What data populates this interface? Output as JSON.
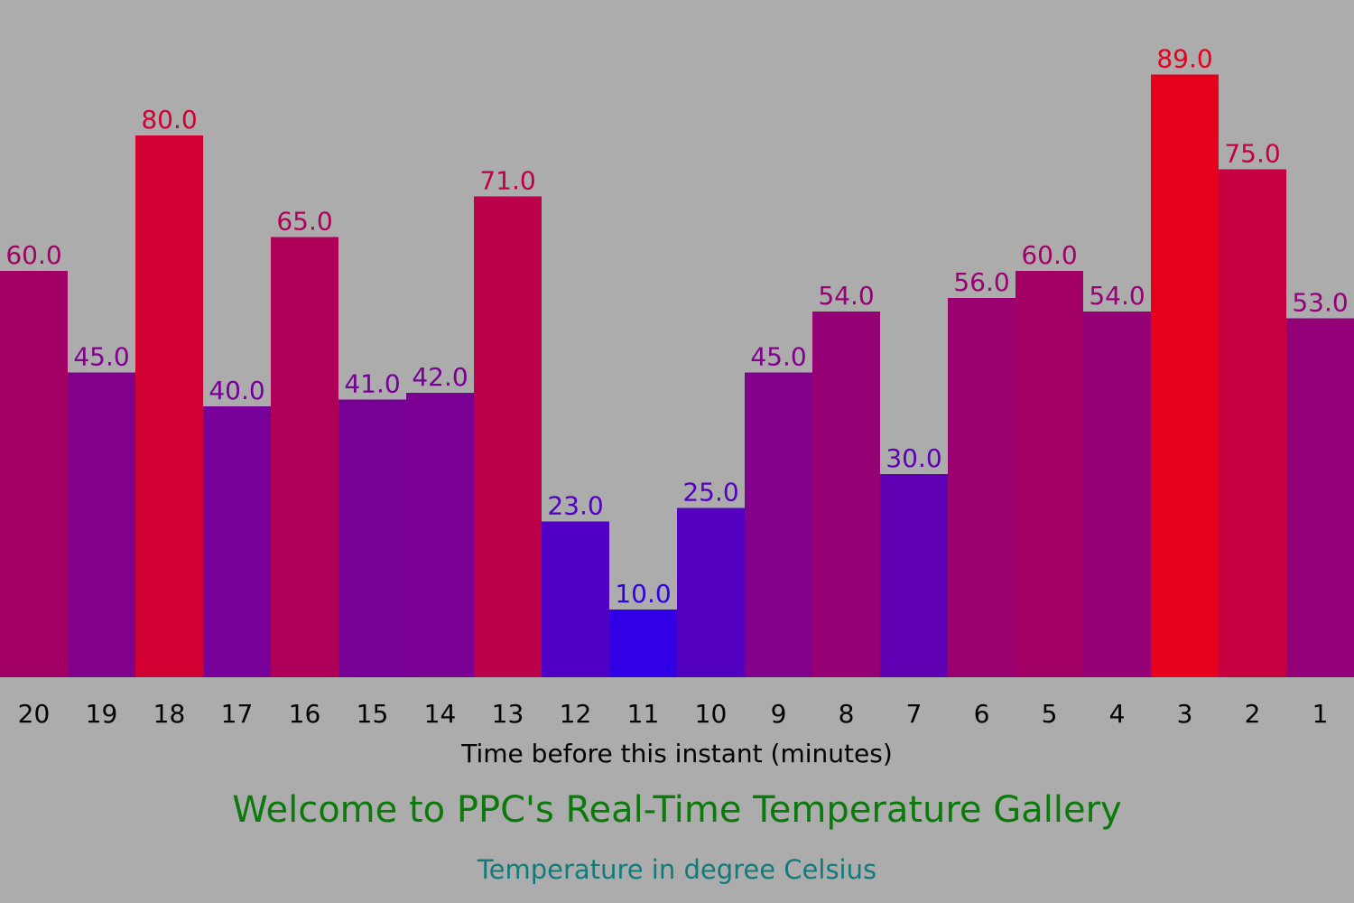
{
  "page": {
    "title": "Welcome to PPC's Real-Time Temperature Gallery",
    "subtitle": "Temperature in degree Celsius"
  },
  "colors": {
    "background": "#acacac",
    "title": "#0b7a0b",
    "subtitle": "#137a7a",
    "cold": "#1a00ff",
    "hot": "#ff0000"
  },
  "chart_data": {
    "type": "bar",
    "categories": [
      "20",
      "19",
      "18",
      "17",
      "16",
      "15",
      "14",
      "13",
      "12",
      "11",
      "10",
      "9",
      "8",
      "7",
      "6",
      "5",
      "4",
      "3",
      "2",
      "1"
    ],
    "values": [
      60.0,
      45.0,
      80.0,
      40.0,
      65.0,
      41.0,
      42.0,
      71.0,
      23.0,
      10.0,
      25.0,
      45.0,
      54.0,
      30.0,
      56.0,
      60.0,
      54.0,
      89.0,
      75.0,
      53.0
    ],
    "value_labels": [
      "60.0",
      "45.0",
      "80.0",
      "40.0",
      "65.0",
      "41.0",
      "42.0",
      "71.0",
      "23.0",
      "10.0",
      "25.0",
      "45.0",
      "54.0",
      "30.0",
      "56.0",
      "60.0",
      "54.0",
      "89.0",
      "75.0",
      "53.0"
    ],
    "xlabel": "Time before this instant (minutes)",
    "ylabel": "",
    "ylim": [
      0,
      100
    ],
    "grid": false,
    "legend": false
  }
}
